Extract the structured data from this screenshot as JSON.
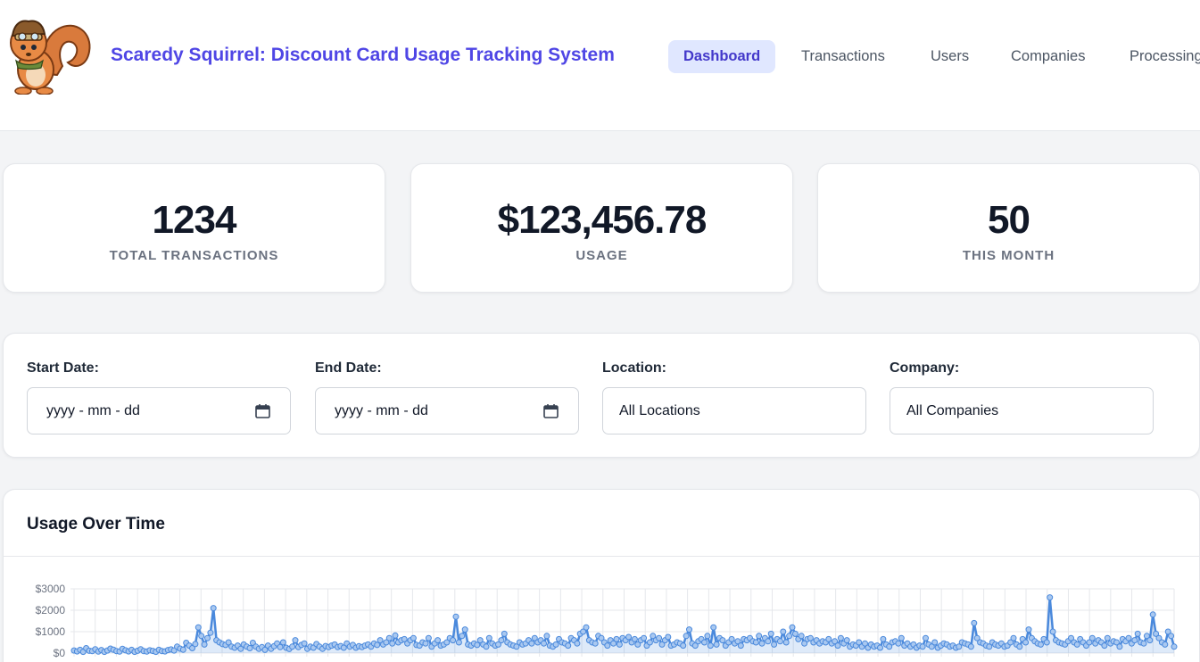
{
  "header": {
    "title": "Scaredy Squirrel: Discount Card Usage Tracking System",
    "nav": [
      {
        "label": "Dashboard",
        "active": true
      },
      {
        "label": "Transactions",
        "active": false
      },
      {
        "label": "Users",
        "active": false
      },
      {
        "label": "Companies",
        "active": false
      },
      {
        "label": "Processing",
        "active": false
      }
    ]
  },
  "stats": [
    {
      "value": "1234",
      "label": "TOTAL TRANSACTIONS"
    },
    {
      "value": "$123,456.78",
      "label": "USAGE"
    },
    {
      "value": "50",
      "label": "THIS MONTH"
    }
  ],
  "filters": {
    "start_date": {
      "label": "Start Date:",
      "placeholder": "yyyy - mm - dd"
    },
    "end_date": {
      "label": "End Date:",
      "placeholder": "yyyy - mm - dd"
    },
    "location": {
      "label": "Location:",
      "value": "All Locations"
    },
    "company": {
      "label": "Company:",
      "value": "All Companies"
    }
  },
  "colors": {
    "accent": "#4f46e5",
    "nav_active_bg": "#e0e7ff",
    "line": "#4a89dc"
  },
  "chart_data": {
    "type": "line",
    "title": "Usage Over Time",
    "xlabel": "",
    "ylabel": "",
    "ylim": [
      0,
      3000
    ],
    "y_ticks": [
      "$0",
      "$1000",
      "$2000",
      "$3000"
    ],
    "grid": true,
    "series": [
      {
        "values": [
          120,
          80,
          150,
          60,
          230,
          110,
          90,
          180,
          70,
          140,
          60,
          120,
          210,
          160,
          90,
          70,
          200,
          130,
          80,
          150,
          60,
          110,
          180,
          90,
          70,
          130,
          100,
          60,
          150,
          90,
          80,
          140,
          170,
          120,
          300,
          210,
          160,
          480,
          350,
          230,
          420,
          1200,
          800,
          400,
          700,
          950,
          2100,
          600,
          500,
          420,
          380,
          500,
          300,
          250,
          350,
          200,
          400,
          300,
          230,
          480,
          300,
          200,
          280,
          150,
          350,
          200,
          320,
          450,
          280,
          500,
          250,
          190,
          300,
          600,
          280,
          380,
          450,
          200,
          300,
          250,
          420,
          300,
          200,
          330,
          280,
          350,
          400,
          280,
          330,
          250,
          450,
          300,
          380,
          250,
          320,
          280,
          350,
          400,
          300,
          450,
          380,
          600,
          400,
          500,
          700,
          450,
          820,
          500,
          600,
          650,
          450,
          600,
          700,
          380,
          350,
          500,
          450,
          700,
          300,
          450,
          600,
          350,
          400,
          500,
          700,
          600,
          1700,
          500,
          800,
          1100,
          400,
          350,
          450,
          380,
          600,
          400,
          300,
          700,
          450,
          350,
          400,
          600,
          900,
          500,
          400,
          350,
          300,
          500,
          400,
          450,
          600,
          450,
          700,
          500,
          600,
          450,
          800,
          350,
          300,
          400,
          650,
          500,
          450,
          350,
          700,
          600,
          450,
          900,
          1000,
          1200,
          600,
          500,
          450,
          800,
          700,
          500,
          350,
          600,
          450,
          650,
          400,
          700,
          600,
          750,
          500,
          650,
          400,
          600,
          700,
          350,
          500,
          800,
          600,
          700,
          400,
          600,
          750,
          350,
          400,
          500,
          450,
          350,
          800,
          1100,
          450,
          350,
          550,
          650,
          500,
          800,
          350,
          1200,
          400,
          700,
          600,
          350,
          500,
          650,
          450,
          550,
          350,
          650,
          600,
          700,
          550,
          500,
          800,
          450,
          700,
          550,
          900,
          400,
          650,
          550,
          1000,
          500,
          800,
          1200,
          900,
          650,
          800,
          450,
          650,
          700,
          500,
          600,
          450,
          550,
          500,
          650,
          450,
          550,
          350,
          700,
          450,
          600,
          300,
          400,
          350,
          500,
          300,
          450,
          250,
          400,
          300,
          350,
          250,
          650,
          400,
          300,
          500,
          550,
          450,
          700,
          350,
          450,
          300,
          400,
          250,
          350,
          300,
          700,
          400,
          300,
          500,
          250,
          350,
          450,
          400,
          300,
          350,
          250,
          300,
          500,
          450,
          400,
          300,
          1400,
          700,
          500,
          450,
          350,
          300,
          500,
          400,
          350,
          450,
          300,
          350,
          500,
          700,
          400,
          300,
          650,
          500,
          1100,
          700,
          550,
          450,
          400,
          650,
          500,
          2600,
          1000,
          600,
          500,
          450,
          400,
          550,
          700,
          500,
          400,
          650,
          500,
          350,
          500,
          700,
          450,
          600,
          500,
          350,
          700,
          450,
          550,
          500,
          300,
          650,
          550,
          700,
          450,
          600,
          900,
          500,
          450,
          800,
          600,
          1800,
          900,
          700,
          500,
          400,
          1000,
          800,
          300
        ]
      }
    ]
  }
}
